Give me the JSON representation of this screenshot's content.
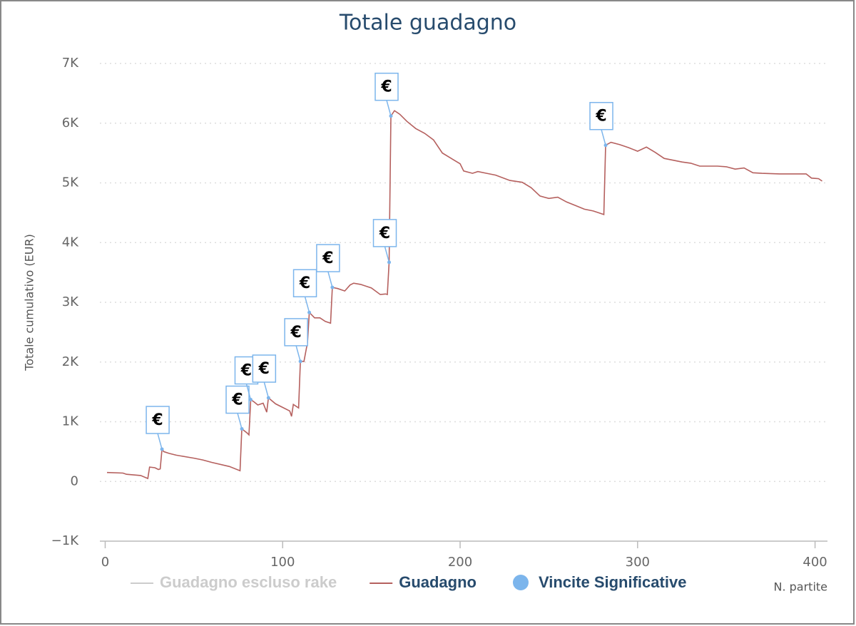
{
  "chart_data": {
    "type": "line",
    "title": "Totale guadagno",
    "y_axis_label": "Totale cumulativo (EUR)",
    "x_axis_label": "N. partite",
    "xlim": [
      -3,
      407
    ],
    "xticks": [
      0,
      100,
      200,
      300,
      400
    ],
    "ylim": [
      -1000,
      7000
    ],
    "yticks": [
      {
        "value": -1000,
        "label": "−1K"
      },
      0,
      {
        "value": 1000,
        "label": "1K"
      },
      {
        "value": 2000,
        "label": "2K"
      },
      {
        "value": 3000,
        "label": "3K"
      },
      {
        "value": 4000,
        "label": "4K"
      },
      {
        "value": 5000,
        "label": "5K"
      },
      {
        "value": 6000,
        "label": "6K"
      },
      {
        "value": 7000,
        "label": "7K"
      }
    ],
    "grid": true,
    "series": [
      {
        "name": "Guadagno escluso rake",
        "color": "#cccccc",
        "visible": false
      },
      {
        "name": "Guadagno",
        "color": "#b5605e",
        "x": [
          1,
          10,
          12,
          20,
          24,
          25,
          28,
          30,
          31,
          32,
          33,
          36,
          40,
          50,
          55,
          60,
          70,
          76,
          77,
          80,
          81,
          82,
          84,
          86,
          89,
          91,
          92,
          96,
          100,
          104,
          105,
          106,
          109,
          110,
          112,
          114,
          115,
          118,
          121,
          124,
          127,
          128,
          131,
          135,
          138,
          140,
          144,
          150,
          155,
          158,
          159,
          160,
          161,
          163,
          166,
          170,
          175,
          180,
          185,
          190,
          195,
          200,
          202,
          207,
          210,
          215,
          220,
          228,
          235,
          240,
          245,
          250,
          255,
          260,
          265,
          270,
          275,
          278,
          281,
          282,
          285,
          290,
          295,
          300,
          305,
          310,
          315,
          320,
          325,
          330,
          335,
          345,
          350,
          355,
          360,
          365,
          370,
          380,
          395,
          398,
          402,
          404
        ],
        "values": [
          150,
          140,
          120,
          100,
          50,
          240,
          230,
          200,
          210,
          540,
          500,
          470,
          440,
          390,
          360,
          320,
          250,
          180,
          880,
          810,
          780,
          1370,
          1330,
          1280,
          1310,
          1160,
          1400,
          1300,
          1240,
          1180,
          1090,
          1290,
          1230,
          2010,
          2010,
          2330,
          2830,
          2740,
          2740,
          2680,
          2650,
          3250,
          3230,
          3190,
          3290,
          3320,
          3300,
          3240,
          3130,
          3140,
          3130,
          3670,
          6120,
          6210,
          6150,
          6030,
          5910,
          5830,
          5720,
          5500,
          5410,
          5320,
          5200,
          5160,
          5190,
          5160,
          5130,
          5040,
          5010,
          4920,
          4780,
          4740,
          4760,
          4680,
          4620,
          4560,
          4530,
          4500,
          4470,
          5630,
          5680,
          5640,
          5590,
          5530,
          5600,
          5510,
          5410,
          5380,
          5350,
          5330,
          5280,
          5280,
          5270,
          5230,
          5250,
          5170,
          5160,
          5150,
          5150,
          5080,
          5070,
          5030
        ]
      },
      {
        "name": "Vincite Significative",
        "color": "#7cb5ec",
        "type": "scatter",
        "x": [
          32,
          77,
          82,
          92,
          110,
          115,
          128,
          160,
          161,
          282
        ],
        "values": [
          540,
          880,
          1370,
          1400,
          2010,
          2830,
          3250,
          3670,
          6120,
          5630
        ],
        "labels": [
          "€",
          "€",
          "€",
          "€",
          "€",
          "€",
          "€",
          "€",
          "€",
          "€"
        ]
      }
    ]
  }
}
